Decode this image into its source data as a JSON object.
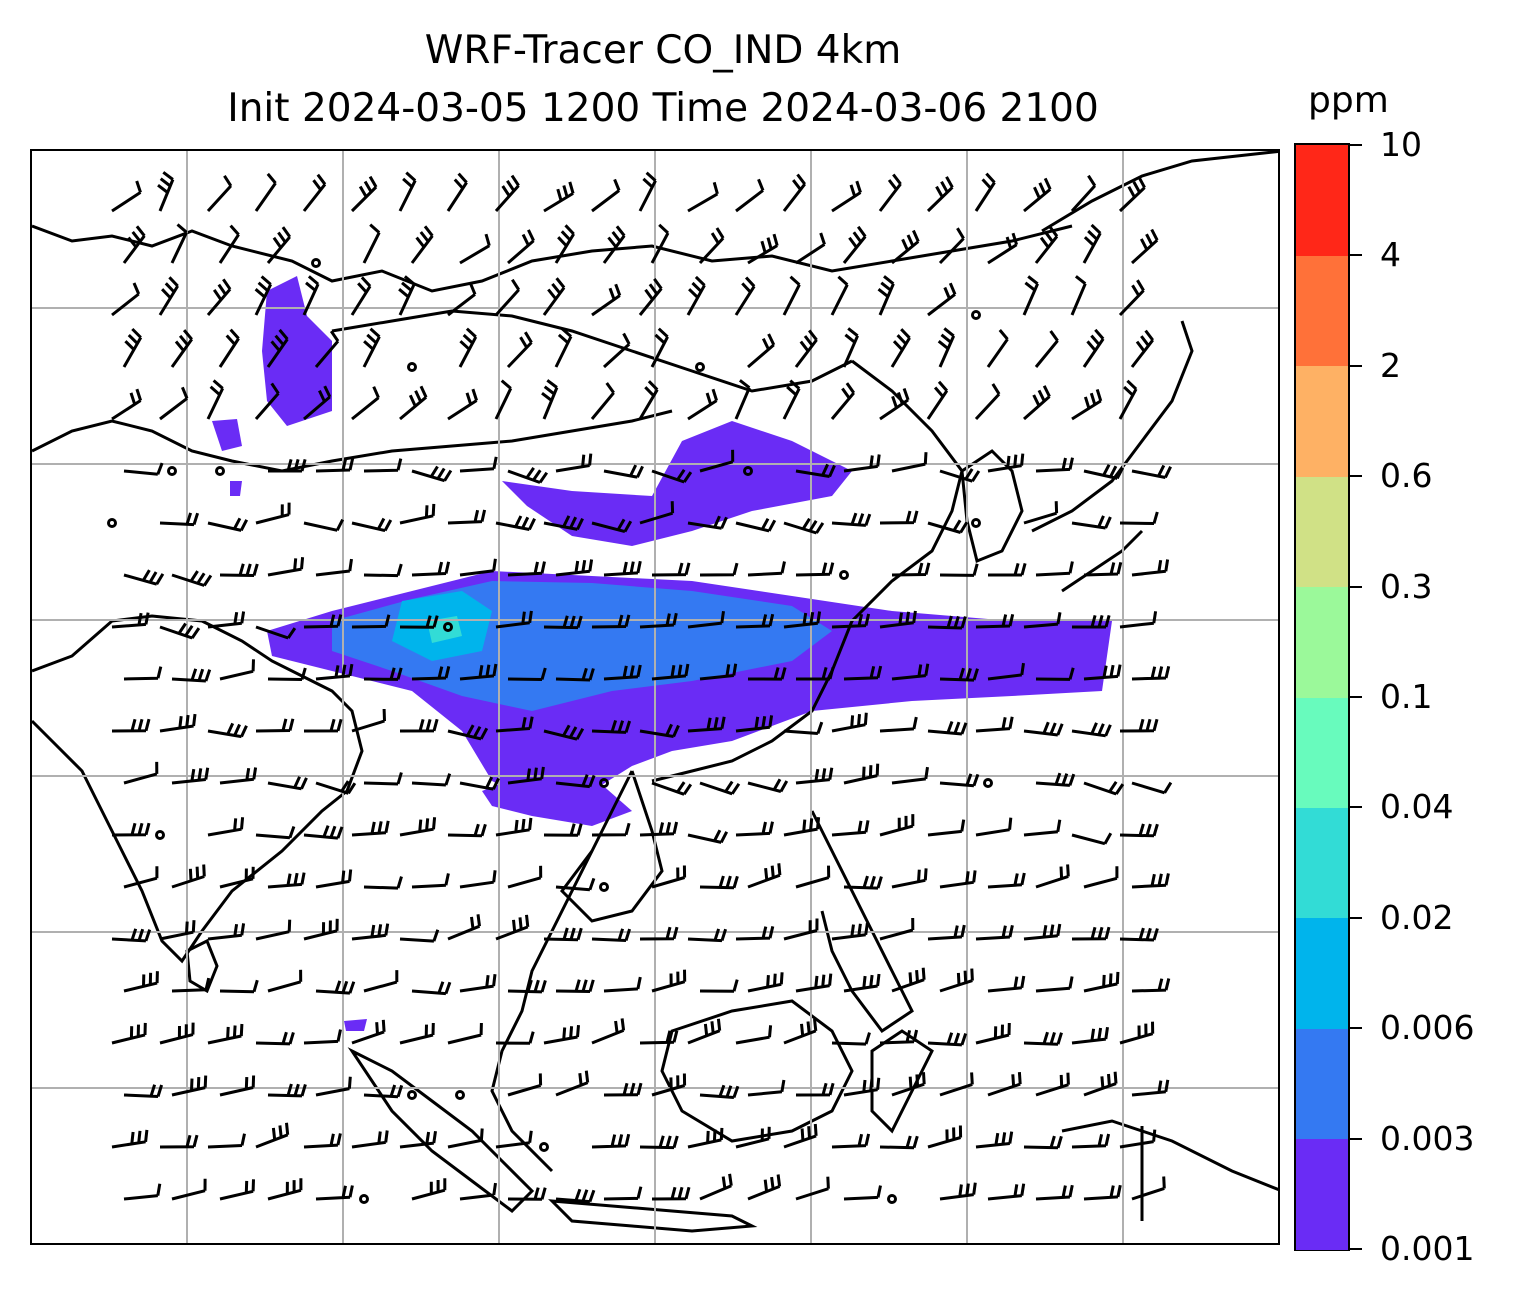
{
  "title": {
    "line1": "WRF-Tracer CO_IND 4km",
    "line2": "Init 2024-03-05 1200 Time 2024-03-06 2100"
  },
  "colorbar": {
    "unit": "ppm",
    "levels": [
      "0.001",
      "0.003",
      "0.006",
      "0.02",
      "0.04",
      "0.1",
      "0.3",
      "0.6",
      "2",
      "4",
      "10"
    ],
    "colors": [
      "#6a2cf5",
      "#3479f2",
      "#00b4ec",
      "#32dcd6",
      "#68fbbd",
      "#9bf99a",
      "#d0e186",
      "#feb164",
      "#ff7139",
      "#ff2718"
    ]
  },
  "map": {
    "gridlines": true,
    "coastline_color": "#000000",
    "grid_color": "#b0b0b0"
  }
}
